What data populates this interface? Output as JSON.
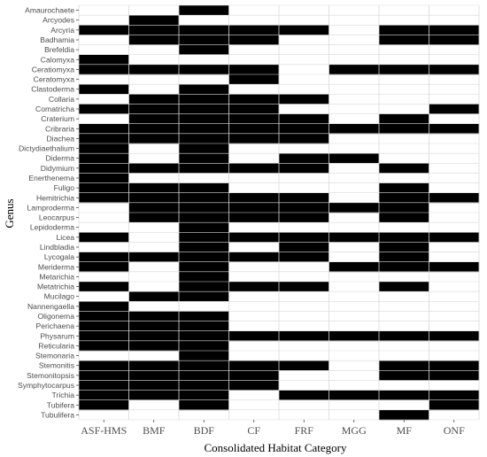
{
  "chart_data": {
    "type": "heatmap",
    "title": "",
    "xlabel": "Consolidated Habitat Category",
    "ylabel": "Genus",
    "grid": true,
    "legend": "none",
    "colors": {
      "present": "#000000",
      "absent": "#ffffff",
      "grid": "#d9d9d9"
    },
    "x": [
      "ASF-HMS",
      "BMF",
      "BDF",
      "CF",
      "FRF",
      "MGG",
      "MF",
      "ONF"
    ],
    "y": [
      "Amaurochaete",
      "Arcyodes",
      "Arcyria",
      "Badhamia",
      "Brefeldia",
      "Calomyxa",
      "Ceratiomyxa",
      "Ceratomyxa",
      "Clastoderma",
      "Collaria",
      "Comatricha",
      "Craterium",
      "Cribraria",
      "Diachea",
      "Dictydiaethalium",
      "Diderma",
      "Didymium",
      "Enerthenema",
      "Fuligo",
      "Hemitrichia",
      "Lamproderma",
      "Leocarpus",
      "Lepidoderma",
      "Licea",
      "Lindbladia",
      "Lycogala",
      "Meriderma",
      "Metarichia",
      "Metatrichia",
      "Mucilago",
      "Nannengaella",
      "Oligonema",
      "Perichaena",
      "Physarum",
      "Reticularia",
      "Stemonaria",
      "Stemonitis",
      "Stemonitopsis",
      "Symphytocarpus",
      "Trichia",
      "Tubifera",
      "Tubulifera"
    ],
    "presence": [
      [
        0,
        0,
        1,
        0,
        0,
        0,
        0,
        0
      ],
      [
        0,
        1,
        0,
        0,
        0,
        0,
        0,
        0
      ],
      [
        1,
        1,
        1,
        1,
        1,
        0,
        1,
        1
      ],
      [
        0,
        1,
        1,
        1,
        0,
        0,
        1,
        1
      ],
      [
        0,
        0,
        1,
        0,
        0,
        0,
        0,
        0
      ],
      [
        1,
        0,
        0,
        0,
        0,
        0,
        0,
        0
      ],
      [
        1,
        1,
        1,
        1,
        0,
        1,
        1,
        1
      ],
      [
        0,
        0,
        0,
        1,
        0,
        0,
        0,
        0
      ],
      [
        1,
        0,
        1,
        0,
        0,
        0,
        0,
        0
      ],
      [
        0,
        1,
        1,
        1,
        1,
        0,
        0,
        0
      ],
      [
        1,
        1,
        1,
        1,
        0,
        0,
        0,
        1
      ],
      [
        0,
        1,
        1,
        1,
        1,
        0,
        1,
        0
      ],
      [
        1,
        1,
        1,
        1,
        1,
        1,
        1,
        1
      ],
      [
        1,
        1,
        1,
        1,
        1,
        0,
        0,
        0
      ],
      [
        1,
        0,
        1,
        0,
        0,
        0,
        0,
        0
      ],
      [
        1,
        0,
        1,
        0,
        1,
        1,
        0,
        0
      ],
      [
        1,
        1,
        1,
        1,
        1,
        0,
        1,
        0
      ],
      [
        1,
        0,
        0,
        0,
        0,
        0,
        0,
        0
      ],
      [
        1,
        1,
        1,
        0,
        0,
        0,
        1,
        0
      ],
      [
        1,
        1,
        1,
        1,
        1,
        0,
        1,
        1
      ],
      [
        0,
        1,
        1,
        1,
        1,
        1,
        1,
        0
      ],
      [
        0,
        1,
        1,
        1,
        1,
        0,
        1,
        0
      ],
      [
        0,
        0,
        1,
        0,
        0,
        0,
        0,
        0
      ],
      [
        1,
        0,
        1,
        1,
        1,
        1,
        1,
        1
      ],
      [
        0,
        0,
        1,
        0,
        1,
        0,
        1,
        0
      ],
      [
        1,
        1,
        1,
        1,
        1,
        0,
        1,
        0
      ],
      [
        1,
        0,
        1,
        0,
        0,
        1,
        1,
        1
      ],
      [
        0,
        0,
        1,
        0,
        0,
        0,
        0,
        0
      ],
      [
        1,
        0,
        1,
        1,
        1,
        0,
        1,
        0
      ],
      [
        0,
        1,
        1,
        0,
        0,
        0,
        0,
        0
      ],
      [
        1,
        0,
        0,
        0,
        0,
        0,
        0,
        0
      ],
      [
        1,
        1,
        1,
        0,
        0,
        0,
        0,
        0
      ],
      [
        1,
        1,
        1,
        0,
        0,
        0,
        0,
        0
      ],
      [
        1,
        1,
        1,
        1,
        1,
        1,
        1,
        1
      ],
      [
        1,
        1,
        1,
        0,
        0,
        0,
        0,
        0
      ],
      [
        0,
        0,
        1,
        0,
        0,
        0,
        0,
        0
      ],
      [
        1,
        1,
        1,
        1,
        1,
        0,
        1,
        1
      ],
      [
        1,
        1,
        1,
        1,
        0,
        0,
        1,
        1
      ],
      [
        1,
        1,
        1,
        1,
        0,
        0,
        0,
        0
      ],
      [
        1,
        1,
        1,
        0,
        1,
        1,
        1,
        1
      ],
      [
        1,
        0,
        1,
        0,
        0,
        0,
        0,
        1
      ],
      [
        0,
        0,
        0,
        0,
        0,
        0,
        1,
        0
      ]
    ]
  }
}
